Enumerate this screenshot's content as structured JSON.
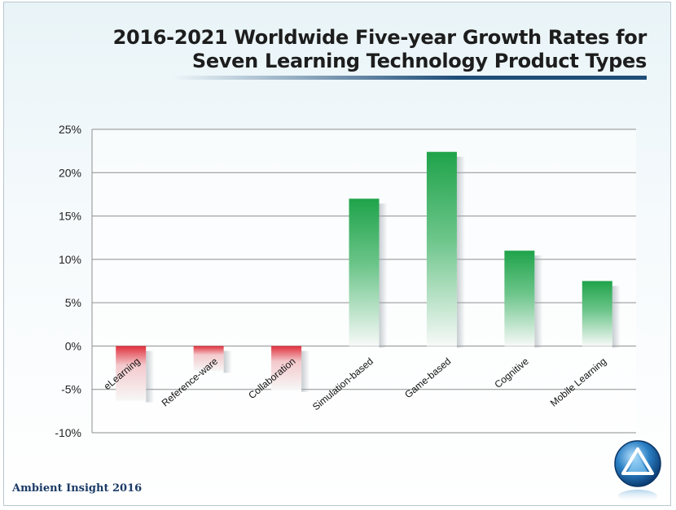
{
  "header": {
    "title_line1": "2016-2021 Worldwide Five-year Growth Rates for",
    "title_line2": "Seven Learning Technology Product Types"
  },
  "footer": {
    "source": "Ambient Insight 2016"
  },
  "logo": {
    "icon": "ambient-insight-logo-icon"
  },
  "chart_data": {
    "type": "bar",
    "categories": [
      "eLearning",
      "Reference-ware",
      "Collaboration",
      "Simulation-based",
      "Game-based",
      "Cognitive",
      "Mobile Learning"
    ],
    "values": [
      -6.3,
      -2.9,
      -5.1,
      17.0,
      22.4,
      11.0,
      7.5
    ],
    "ylim": [
      -10,
      25
    ],
    "yticks": [
      25,
      20,
      15,
      10,
      5,
      0,
      -5,
      -10
    ],
    "ytick_labels": [
      "25%",
      "20%",
      "15%",
      "10%",
      "5%",
      "0%",
      "-5%",
      "-10%"
    ],
    "grid": true,
    "colors": {
      "positive": "#1fa34a",
      "negative": "#e0303c"
    },
    "xlabel": "",
    "ylabel": ""
  }
}
